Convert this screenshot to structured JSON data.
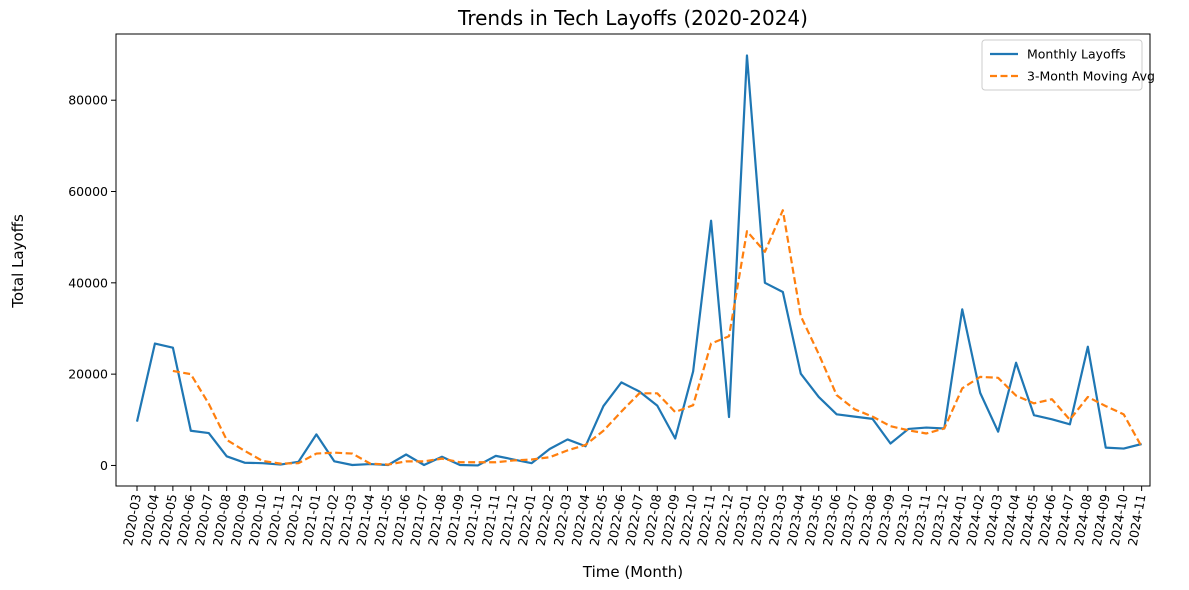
{
  "chart_data": {
    "type": "line",
    "title": "Trends in Tech Layoffs (2020-2024)",
    "xlabel": "Time (Month)",
    "ylabel": "Total Layoffs",
    "ylim": [
      -4500,
      94500
    ],
    "yticks": [
      0,
      20000,
      40000,
      60000,
      80000
    ],
    "grid": false,
    "legend_position": "top-right",
    "categories": [
      "2020-03",
      "2020-04",
      "2020-05",
      "2020-06",
      "2020-07",
      "2020-08",
      "2020-09",
      "2020-10",
      "2020-11",
      "2020-12",
      "2021-01",
      "2021-02",
      "2021-03",
      "2021-04",
      "2021-05",
      "2021-06",
      "2021-07",
      "2021-08",
      "2021-09",
      "2021-10",
      "2021-11",
      "2021-12",
      "2022-01",
      "2022-02",
      "2022-03",
      "2022-04",
      "2022-05",
      "2022-06",
      "2022-07",
      "2022-08",
      "2022-09",
      "2022-10",
      "2022-11",
      "2022-12",
      "2023-01",
      "2023-02",
      "2023-03",
      "2023-04",
      "2023-05",
      "2023-06",
      "2023-07",
      "2023-08",
      "2023-09",
      "2023-10",
      "2023-11",
      "2023-12",
      "2024-01",
      "2024-02",
      "2024-03",
      "2024-04",
      "2024-05",
      "2024-06",
      "2024-07",
      "2024-08",
      "2024-09",
      "2024-10",
      "2024-11"
    ],
    "series": [
      {
        "name": "Monthly Layoffs",
        "color": "#1f77b4",
        "style": "solid",
        "values": [
          9600,
          26700,
          25800,
          7600,
          7100,
          2000,
          600,
          500,
          200,
          800,
          6800,
          900,
          100,
          300,
          100,
          2400,
          100,
          1900,
          100,
          0,
          2100,
          1300,
          500,
          3600,
          5700,
          4200,
          13000,
          18200,
          16200,
          13100,
          5900,
          20600,
          53600,
          10600,
          89800,
          40000,
          38000,
          20100,
          15000,
          11200,
          10700,
          10200,
          4800,
          8000,
          8300,
          8100,
          34200,
          15900,
          7400,
          22500,
          11000,
          10100,
          9000,
          26000,
          3900,
          3700,
          4700
        ]
      },
      {
        "name": "3-Month Moving Avg",
        "color": "#ff7f0e",
        "style": "dashed",
        "values": [
          null,
          null,
          20700,
          20000,
          13500,
          5600,
          3200,
          1000,
          400,
          500,
          2600,
          2800,
          2600,
          400,
          200,
          900,
          900,
          1500,
          700,
          700,
          700,
          1100,
          1300,
          1800,
          3300,
          4500,
          7600,
          11800,
          15800,
          15800,
          11700,
          13200,
          26700,
          28300,
          51300,
          46800,
          55900,
          32700,
          24400,
          15400,
          12300,
          10700,
          8600,
          7700,
          7000,
          8100,
          16900,
          19400,
          19200,
          15300,
          13600,
          14500,
          10000,
          15000,
          13000,
          11200,
          4100
        ]
      }
    ]
  }
}
